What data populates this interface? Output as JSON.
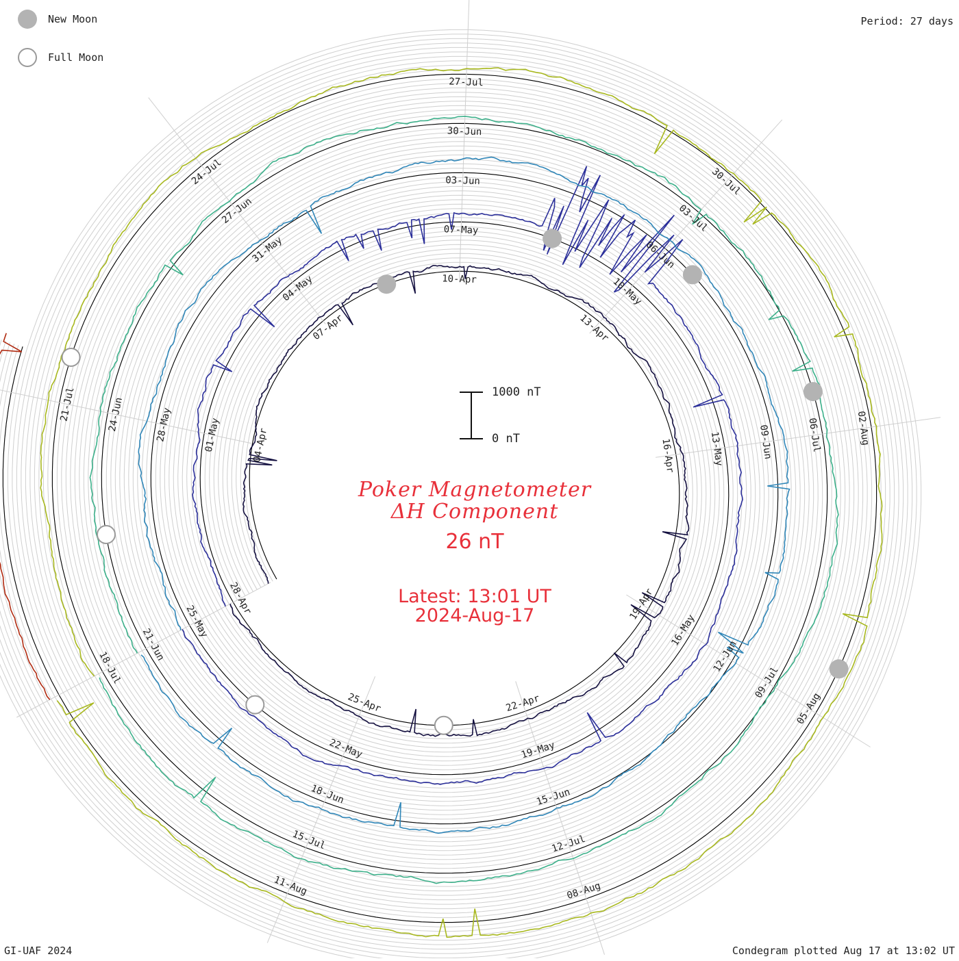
{
  "legend": {
    "new_moon_label": "New Moon",
    "full_moon_label": "Full Moon",
    "new_moon_color": "#b3b3b3",
    "full_moon_color": "#9a9a9a"
  },
  "period_label": "Period: 27 days",
  "footer": {
    "left": "GI-UAF 2024",
    "right": "Condegram plotted Aug 17 at 13:02 UT"
  },
  "center": {
    "title_line1": "Poker Magnetometer",
    "title_line2": "ΔH Component",
    "value": "26 nT",
    "latest_line1": "Latest: 13:01 UT",
    "latest_line2": "2024-Aug-17",
    "scale_top": "1000 nT",
    "scale_bottom": "0 nT",
    "text_color": "#e8303a"
  },
  "chart_data": {
    "type": "line",
    "subtype": "condegram spiral",
    "period_days": 27,
    "value_unit": "nT",
    "scale_bar_nT": [
      0,
      1000
    ],
    "rotations": [
      {
        "start": "2024-04-01",
        "color": "#141040",
        "date_labels": [
          "04-Apr",
          "07-Apr",
          "10-Apr",
          "13-Apr",
          "16-Apr",
          "19-Apr",
          "22-Apr",
          "25-Apr",
          "28-Apr"
        ],
        "storm": false
      },
      {
        "start": "2024-04-28",
        "color": "#2b2f9a",
        "date_labels": [
          "01-May",
          "04-May",
          "07-May",
          "10-May",
          "13-May",
          "16-May",
          "19-May",
          "22-May",
          "25-May"
        ],
        "storm": true
      },
      {
        "start": "2024-05-25",
        "color": "#2f86b8",
        "date_labels": [
          "28-May",
          "31-May",
          "03-Jun",
          "06-Jun",
          "09-Jun",
          "12-Jun",
          "15-Jun",
          "18-Jun",
          "21-Jun"
        ],
        "storm": false
      },
      {
        "start": "2024-06-21",
        "color": "#3cb08a",
        "date_labels": [
          "24-Jun",
          "27-Jun",
          "30-Jun",
          "03-Jul",
          "06-Jul",
          "09-Jul",
          "12-Jul",
          "15-Jul",
          "18-Jul"
        ],
        "storm": false
      },
      {
        "start": "2024-07-18",
        "color": "#a8b81e",
        "date_labels": [
          "21-Jul",
          "24-Jul",
          "27-Jul",
          "30-Jul",
          "02-Aug",
          "05-Aug",
          "08-Aug",
          "11-Aug"
        ],
        "storm": false
      },
      {
        "start": "2024-08-14",
        "color": "#b02a10",
        "date_labels": [],
        "storm": false
      }
    ],
    "new_moons": [
      "2024-04-08",
      "2024-05-08",
      "2024-06-06",
      "2024-07-05",
      "2024-08-04"
    ],
    "full_moons": [
      "2024-04-23",
      "2024-05-23",
      "2024-06-22",
      "2024-07-21"
    ],
    "latest": "2024-08-17 13:01 UT",
    "latest_value_nT": 26
  }
}
